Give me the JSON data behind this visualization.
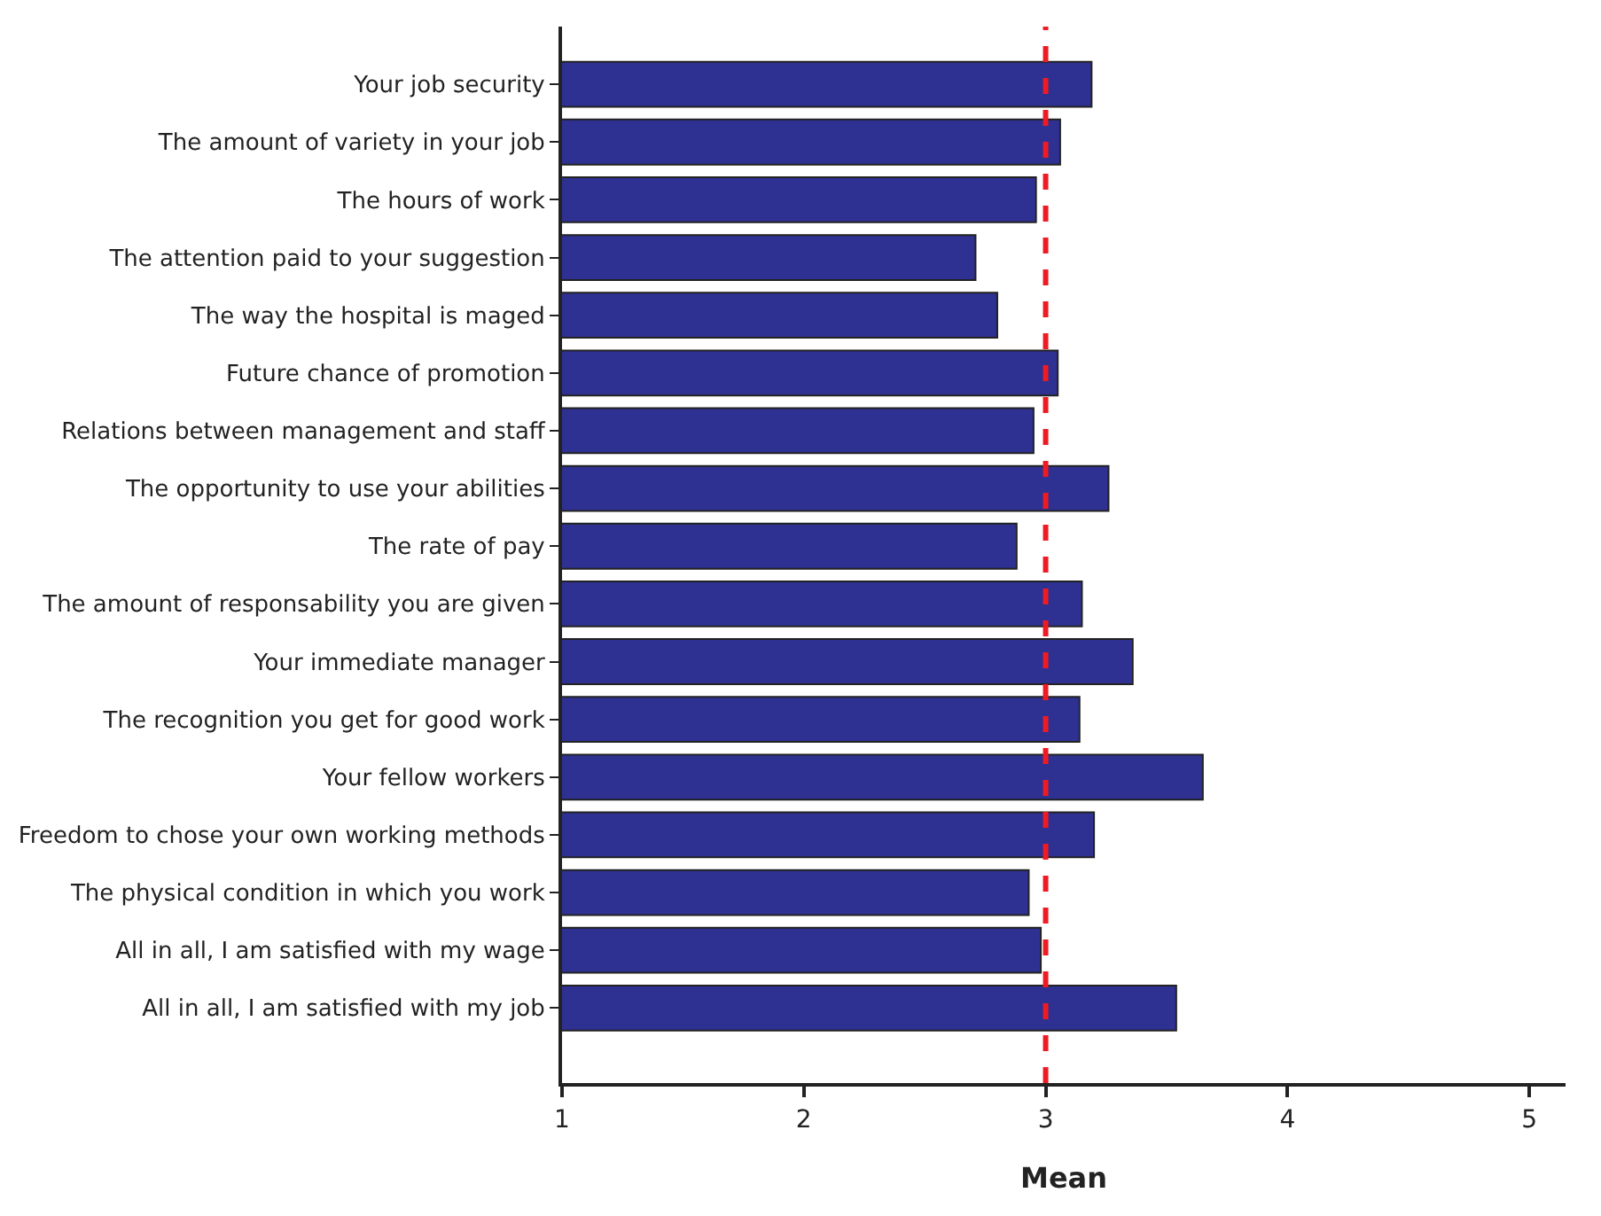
{
  "chart_data": {
    "type": "bar",
    "orientation": "horizontal",
    "xlabel": "Mean",
    "categories": [
      "Your job security",
      "The amount of variety in your job",
      "The hours of work",
      "The attention paid to your suggestion",
      "The way the hospital is maged",
      "Future chance of promotion",
      "Relations between management and staff",
      "The opportunity to use your abilities",
      "The rate of pay",
      "The amount of responsability you are given",
      "Your immediate manager",
      "The recognition you get for good work",
      "Your fellow workers",
      "Freedom to chose your own working methods",
      "The physical condition in which you work",
      "All in all, I am satisfied with my wage",
      "All in all, I am satisfied with my job"
    ],
    "values": [
      3.19,
      3.06,
      2.96,
      2.71,
      2.8,
      3.05,
      2.95,
      3.26,
      2.88,
      3.15,
      3.36,
      3.14,
      3.65,
      3.2,
      2.93,
      2.98,
      3.54
    ],
    "color": "#2e3192",
    "xlim": [
      1,
      5.15
    ],
    "xticks": [
      1,
      2,
      3,
      4,
      5
    ],
    "ref_lines": [
      {
        "axis": "x",
        "value": 3,
        "color": "#ed1c24",
        "line_style": "dashed"
      }
    ]
  }
}
